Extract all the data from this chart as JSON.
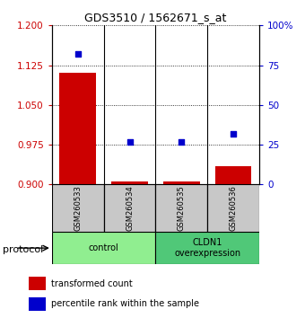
{
  "title": "GDS3510 / 1562671_s_at",
  "samples": [
    "GSM260533",
    "GSM260534",
    "GSM260535",
    "GSM260536"
  ],
  "bar_values": [
    1.11,
    0.905,
    0.905,
    0.935
  ],
  "percentile_values": [
    82,
    27,
    27,
    32
  ],
  "left_ylim": [
    0.9,
    1.2
  ],
  "left_yticks": [
    0.9,
    0.975,
    1.05,
    1.125,
    1.2
  ],
  "right_ylim": [
    0,
    100
  ],
  "right_yticks": [
    0,
    25,
    50,
    75,
    100
  ],
  "bar_color": "#cc0000",
  "dot_color": "#0000cc",
  "bar_width": 0.7,
  "groups": [
    {
      "label": "control",
      "samples": [
        0,
        1
      ],
      "color": "#90ee90"
    },
    {
      "label": "CLDN1\noverexpression",
      "samples": [
        2,
        3
      ],
      "color": "#50c878"
    }
  ],
  "protocol_label": "protocol",
  "legend_bar_label": "transformed count",
  "legend_dot_label": "percentile rank within the sample",
  "background_color": "#ffffff",
  "sample_box_color": "#c8c8c8",
  "axis_label_color_left": "#cc0000",
  "axis_label_color_right": "#0000cc"
}
